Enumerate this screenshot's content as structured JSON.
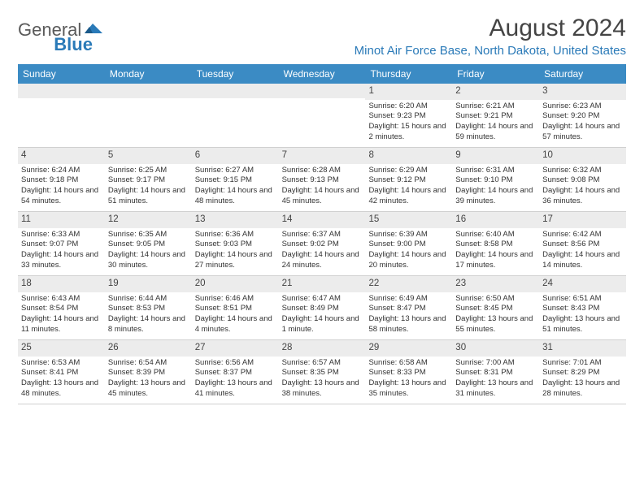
{
  "logo": {
    "text1": "General",
    "text2": "Blue"
  },
  "title": "August 2024",
  "location": "Minot Air Force Base, North Dakota, United States",
  "colors": {
    "header_bg": "#3b8bc4",
    "accent": "#2a7ab8"
  },
  "day_names": [
    "Sunday",
    "Monday",
    "Tuesday",
    "Wednesday",
    "Thursday",
    "Friday",
    "Saturday"
  ],
  "weeks": [
    [
      null,
      null,
      null,
      null,
      {
        "num": "1",
        "sunrise": "Sunrise: 6:20 AM",
        "sunset": "Sunset: 9:23 PM",
        "daylight": "Daylight: 15 hours and 2 minutes."
      },
      {
        "num": "2",
        "sunrise": "Sunrise: 6:21 AM",
        "sunset": "Sunset: 9:21 PM",
        "daylight": "Daylight: 14 hours and 59 minutes."
      },
      {
        "num": "3",
        "sunrise": "Sunrise: 6:23 AM",
        "sunset": "Sunset: 9:20 PM",
        "daylight": "Daylight: 14 hours and 57 minutes."
      }
    ],
    [
      {
        "num": "4",
        "sunrise": "Sunrise: 6:24 AM",
        "sunset": "Sunset: 9:18 PM",
        "daylight": "Daylight: 14 hours and 54 minutes."
      },
      {
        "num": "5",
        "sunrise": "Sunrise: 6:25 AM",
        "sunset": "Sunset: 9:17 PM",
        "daylight": "Daylight: 14 hours and 51 minutes."
      },
      {
        "num": "6",
        "sunrise": "Sunrise: 6:27 AM",
        "sunset": "Sunset: 9:15 PM",
        "daylight": "Daylight: 14 hours and 48 minutes."
      },
      {
        "num": "7",
        "sunrise": "Sunrise: 6:28 AM",
        "sunset": "Sunset: 9:13 PM",
        "daylight": "Daylight: 14 hours and 45 minutes."
      },
      {
        "num": "8",
        "sunrise": "Sunrise: 6:29 AM",
        "sunset": "Sunset: 9:12 PM",
        "daylight": "Daylight: 14 hours and 42 minutes."
      },
      {
        "num": "9",
        "sunrise": "Sunrise: 6:31 AM",
        "sunset": "Sunset: 9:10 PM",
        "daylight": "Daylight: 14 hours and 39 minutes."
      },
      {
        "num": "10",
        "sunrise": "Sunrise: 6:32 AM",
        "sunset": "Sunset: 9:08 PM",
        "daylight": "Daylight: 14 hours and 36 minutes."
      }
    ],
    [
      {
        "num": "11",
        "sunrise": "Sunrise: 6:33 AM",
        "sunset": "Sunset: 9:07 PM",
        "daylight": "Daylight: 14 hours and 33 minutes."
      },
      {
        "num": "12",
        "sunrise": "Sunrise: 6:35 AM",
        "sunset": "Sunset: 9:05 PM",
        "daylight": "Daylight: 14 hours and 30 minutes."
      },
      {
        "num": "13",
        "sunrise": "Sunrise: 6:36 AM",
        "sunset": "Sunset: 9:03 PM",
        "daylight": "Daylight: 14 hours and 27 minutes."
      },
      {
        "num": "14",
        "sunrise": "Sunrise: 6:37 AM",
        "sunset": "Sunset: 9:02 PM",
        "daylight": "Daylight: 14 hours and 24 minutes."
      },
      {
        "num": "15",
        "sunrise": "Sunrise: 6:39 AM",
        "sunset": "Sunset: 9:00 PM",
        "daylight": "Daylight: 14 hours and 20 minutes."
      },
      {
        "num": "16",
        "sunrise": "Sunrise: 6:40 AM",
        "sunset": "Sunset: 8:58 PM",
        "daylight": "Daylight: 14 hours and 17 minutes."
      },
      {
        "num": "17",
        "sunrise": "Sunrise: 6:42 AM",
        "sunset": "Sunset: 8:56 PM",
        "daylight": "Daylight: 14 hours and 14 minutes."
      }
    ],
    [
      {
        "num": "18",
        "sunrise": "Sunrise: 6:43 AM",
        "sunset": "Sunset: 8:54 PM",
        "daylight": "Daylight: 14 hours and 11 minutes."
      },
      {
        "num": "19",
        "sunrise": "Sunrise: 6:44 AM",
        "sunset": "Sunset: 8:53 PM",
        "daylight": "Daylight: 14 hours and 8 minutes."
      },
      {
        "num": "20",
        "sunrise": "Sunrise: 6:46 AM",
        "sunset": "Sunset: 8:51 PM",
        "daylight": "Daylight: 14 hours and 4 minutes."
      },
      {
        "num": "21",
        "sunrise": "Sunrise: 6:47 AM",
        "sunset": "Sunset: 8:49 PM",
        "daylight": "Daylight: 14 hours and 1 minute."
      },
      {
        "num": "22",
        "sunrise": "Sunrise: 6:49 AM",
        "sunset": "Sunset: 8:47 PM",
        "daylight": "Daylight: 13 hours and 58 minutes."
      },
      {
        "num": "23",
        "sunrise": "Sunrise: 6:50 AM",
        "sunset": "Sunset: 8:45 PM",
        "daylight": "Daylight: 13 hours and 55 minutes."
      },
      {
        "num": "24",
        "sunrise": "Sunrise: 6:51 AM",
        "sunset": "Sunset: 8:43 PM",
        "daylight": "Daylight: 13 hours and 51 minutes."
      }
    ],
    [
      {
        "num": "25",
        "sunrise": "Sunrise: 6:53 AM",
        "sunset": "Sunset: 8:41 PM",
        "daylight": "Daylight: 13 hours and 48 minutes."
      },
      {
        "num": "26",
        "sunrise": "Sunrise: 6:54 AM",
        "sunset": "Sunset: 8:39 PM",
        "daylight": "Daylight: 13 hours and 45 minutes."
      },
      {
        "num": "27",
        "sunrise": "Sunrise: 6:56 AM",
        "sunset": "Sunset: 8:37 PM",
        "daylight": "Daylight: 13 hours and 41 minutes."
      },
      {
        "num": "28",
        "sunrise": "Sunrise: 6:57 AM",
        "sunset": "Sunset: 8:35 PM",
        "daylight": "Daylight: 13 hours and 38 minutes."
      },
      {
        "num": "29",
        "sunrise": "Sunrise: 6:58 AM",
        "sunset": "Sunset: 8:33 PM",
        "daylight": "Daylight: 13 hours and 35 minutes."
      },
      {
        "num": "30",
        "sunrise": "Sunrise: 7:00 AM",
        "sunset": "Sunset: 8:31 PM",
        "daylight": "Daylight: 13 hours and 31 minutes."
      },
      {
        "num": "31",
        "sunrise": "Sunrise: 7:01 AM",
        "sunset": "Sunset: 8:29 PM",
        "daylight": "Daylight: 13 hours and 28 minutes."
      }
    ]
  ]
}
